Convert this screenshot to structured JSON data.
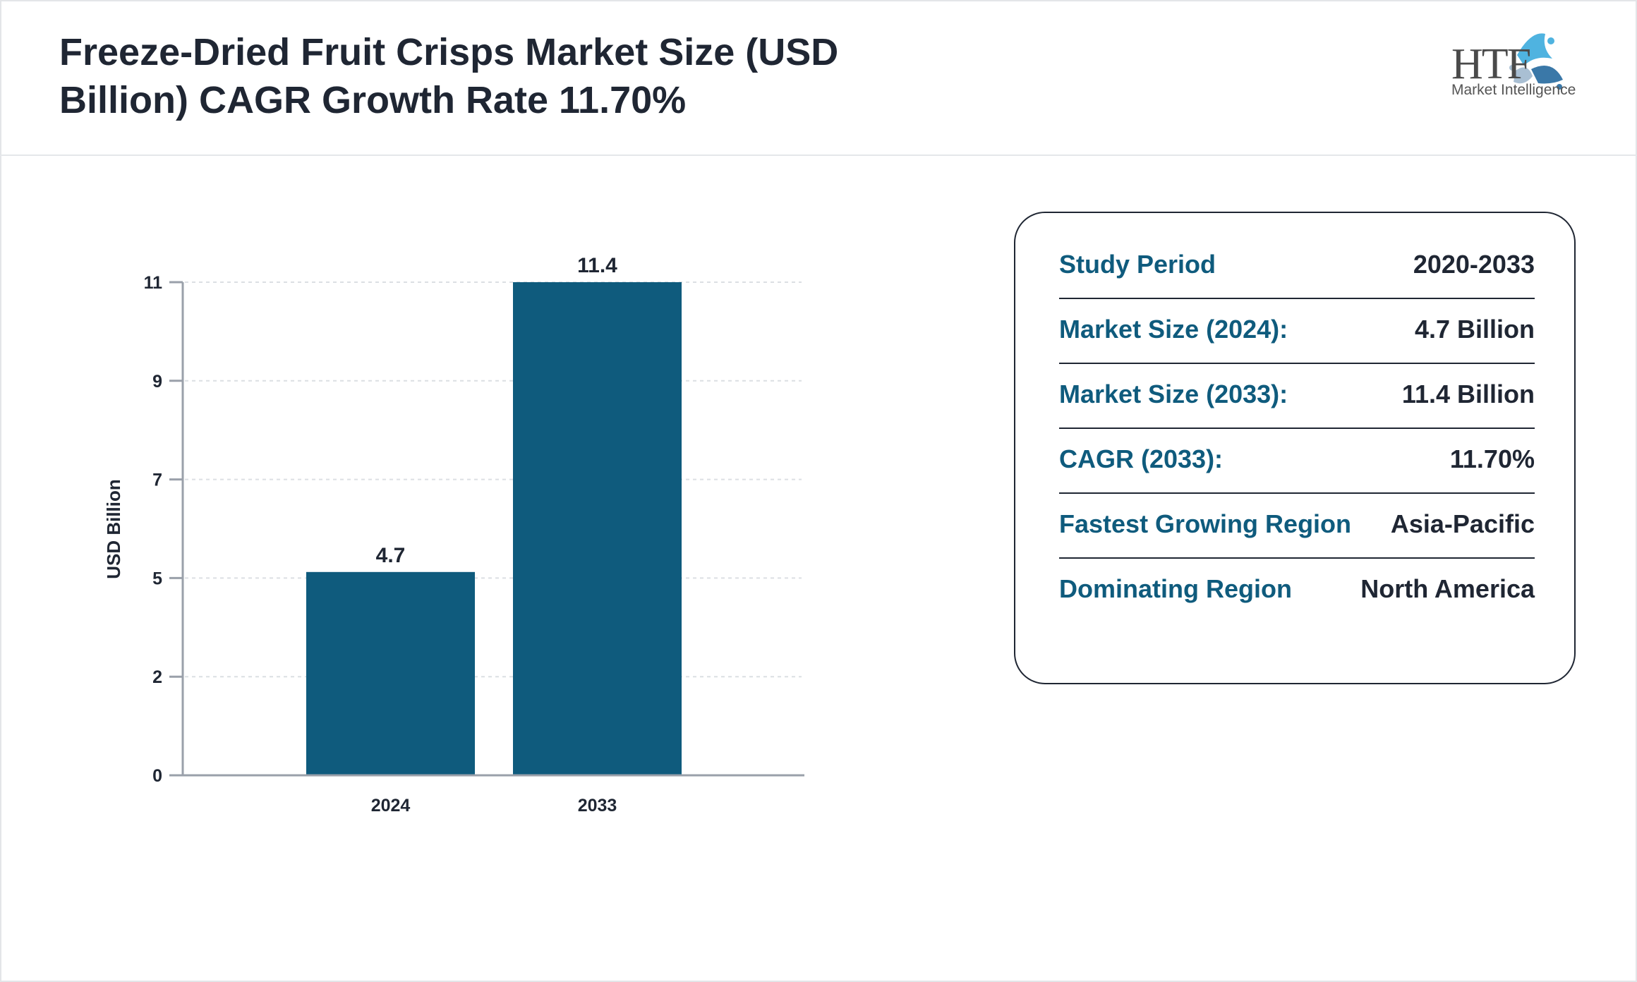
{
  "header": {
    "title": "Freeze-Dried Fruit Crisps Market Size (USD Billion) CAGR Growth Rate 11.70%",
    "logo_text": "HTF",
    "logo_subtext": "Market Intelligence"
  },
  "chart_data": {
    "type": "bar",
    "categories": [
      "2024",
      "2033"
    ],
    "values": [
      4.7,
      11.4
    ],
    "data_labels": [
      "4.7",
      "11.4"
    ],
    "ylabel": "USD Billion",
    "xlabel": "",
    "ylim": [
      0,
      11.4
    ],
    "yticks": [
      0,
      2.28,
      4.56,
      6.84,
      9.12,
      11.4
    ],
    "ytick_labels": [
      "0",
      "2",
      "5",
      "7",
      "9",
      "11"
    ],
    "grid": true,
    "bar_color": "#0f5b7d"
  },
  "info": {
    "rows": [
      {
        "label": "Study Period",
        "value": "2020-2033"
      },
      {
        "label": "Market Size (2024):",
        "value": "4.7 Billion"
      },
      {
        "label": "Market Size (2033):",
        "value": "11.4 Billion"
      },
      {
        "label": "CAGR (2033):",
        "value": "11.70%"
      },
      {
        "label": "Fastest Growing Region",
        "value": "Asia-Pacific"
      },
      {
        "label": "Dominating Region",
        "value": "North America"
      }
    ]
  }
}
